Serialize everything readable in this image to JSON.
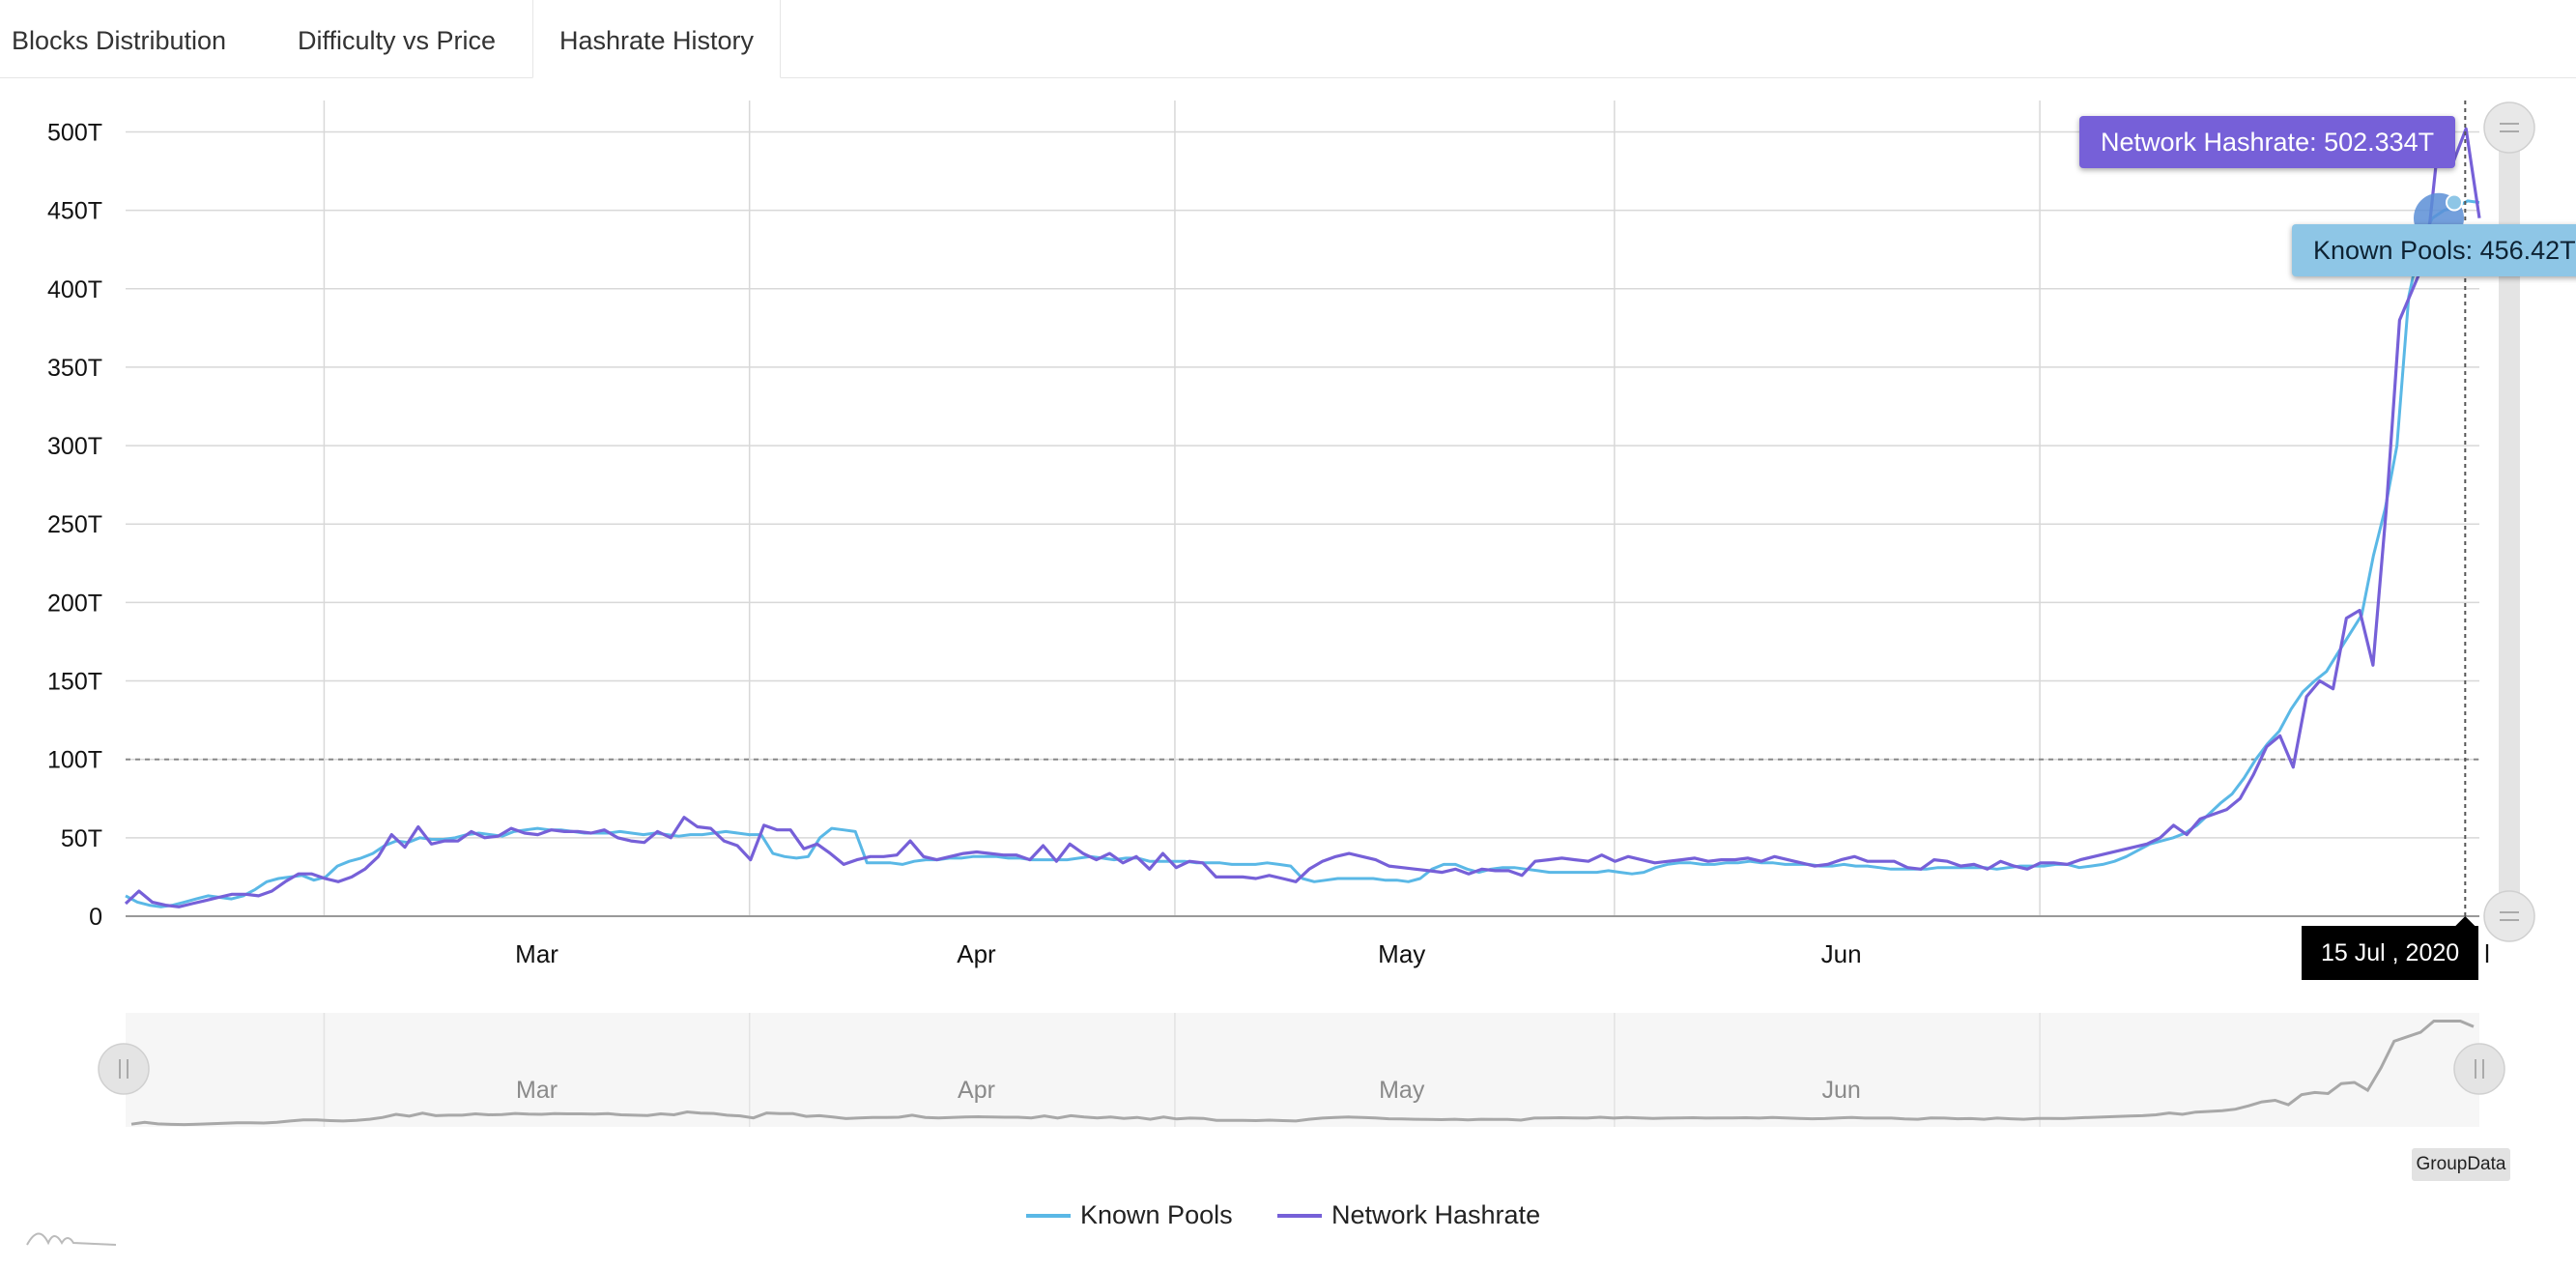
{
  "tabs": [
    {
      "label": "Blocks Distribution",
      "active": false
    },
    {
      "label": "Difficulty vs Price",
      "active": false
    },
    {
      "label": "Hashrate History",
      "active": true
    }
  ],
  "chart_data": {
    "type": "line",
    "y_ticks": [
      "0",
      "50T",
      "100T",
      "150T",
      "200T",
      "250T",
      "300T",
      "350T",
      "400T",
      "450T",
      "500T"
    ],
    "ylim": [
      0,
      520
    ],
    "x_month_labels": [
      "Mar",
      "Apr",
      "May",
      "Jun",
      "Jul"
    ],
    "x_date_range": [
      "2020-02-01",
      "2020-07-16"
    ],
    "reference_line_y": 100,
    "series": [
      {
        "name": "Known Pools",
        "color": "#5ab8e6",
        "values": [
          13,
          9,
          7,
          6,
          7,
          9,
          11,
          13,
          12,
          11,
          13,
          17,
          22,
          24,
          25,
          26,
          23,
          25,
          32,
          35,
          37,
          40,
          45,
          48,
          47,
          50,
          49,
          49,
          50,
          52,
          53,
          52,
          51,
          54,
          55,
          56,
          55,
          55,
          54,
          53,
          53,
          53,
          54,
          53,
          52,
          53,
          52,
          51,
          52,
          52,
          53,
          54,
          53,
          52,
          52,
          40,
          38,
          37,
          38,
          50,
          56,
          55,
          54,
          34,
          34,
          34,
          33,
          35,
          36,
          36,
          37,
          37,
          38,
          38,
          38,
          37,
          37,
          36,
          36,
          36,
          36,
          37,
          38,
          37,
          36,
          37,
          37,
          35,
          35,
          35,
          35,
          34,
          34,
          34,
          33,
          33,
          33,
          34,
          33,
          32,
          24,
          22,
          23,
          24,
          24,
          24,
          24,
          23,
          23,
          22,
          24,
          30,
          33,
          33,
          30,
          28,
          30,
          31,
          31,
          30,
          29,
          28,
          28,
          28,
          28,
          28,
          29,
          28,
          27,
          28,
          31,
          33,
          34,
          34,
          33,
          33,
          34,
          34,
          35,
          34,
          34,
          33,
          33,
          33,
          32,
          32,
          33,
          32,
          32,
          31,
          30,
          30,
          30,
          30,
          31,
          31,
          31,
          31,
          31,
          30,
          31,
          32,
          32,
          32,
          33,
          33,
          31,
          32,
          33,
          35,
          38,
          42,
          46,
          48,
          50,
          53,
          58,
          65,
          72,
          78,
          88,
          100,
          110,
          118,
          132,
          143,
          150,
          156,
          168,
          180,
          192,
          230,
          260,
          300,
          395,
          430,
          445,
          450,
          452,
          456,
          455
        ]
      },
      {
        "name": "Network Hashrate",
        "color": "#7660d8",
        "values": [
          8,
          16,
          9,
          7,
          6,
          8,
          10,
          12,
          14,
          14,
          13,
          16,
          22,
          27,
          27,
          24,
          22,
          25,
          30,
          38,
          52,
          44,
          57,
          46,
          48,
          48,
          54,
          50,
          51,
          56,
          53,
          52,
          55,
          54,
          54,
          53,
          55,
          50,
          48,
          47,
          54,
          50,
          63,
          57,
          56,
          48,
          45,
          36,
          58,
          55,
          55,
          43,
          46,
          40,
          33,
          36,
          38,
          38,
          39,
          48,
          38,
          36,
          38,
          40,
          41,
          40,
          39,
          39,
          36,
          45,
          35,
          46,
          40,
          36,
          40,
          34,
          38,
          30,
          40,
          31,
          35,
          34,
          25,
          25,
          25,
          24,
          26,
          24,
          22,
          30,
          35,
          38,
          40,
          38,
          36,
          32,
          31,
          30,
          29,
          28,
          30,
          27,
          30,
          29,
          29,
          26,
          35,
          36,
          37,
          36,
          35,
          39,
          35,
          38,
          36,
          34,
          35,
          36,
          37,
          35,
          36,
          36,
          37,
          35,
          38,
          36,
          34,
          32,
          33,
          36,
          38,
          35,
          35,
          35,
          31,
          30,
          36,
          35,
          32,
          33,
          30,
          35,
          32,
          30,
          34,
          34,
          33,
          36,
          38,
          40,
          42,
          44,
          46,
          50,
          58,
          52,
          62,
          65,
          68,
          75,
          90,
          108,
          115,
          95,
          140,
          150,
          145,
          190,
          195,
          160,
          260,
          380,
          400,
          420,
          500,
          480,
          502,
          445
        ]
      }
    ]
  },
  "tooltips": {
    "network": "Network Hashrate: 502.334T",
    "known": "Known Pools: 456.42T",
    "date": "15 Jul , 2020",
    "peek_label": "l"
  },
  "group_button": "GroupData",
  "colors": {
    "known": "#5ab8e6",
    "network": "#7660d8",
    "grid": "#d8d8d8",
    "scroll": "#e4e4e4"
  }
}
